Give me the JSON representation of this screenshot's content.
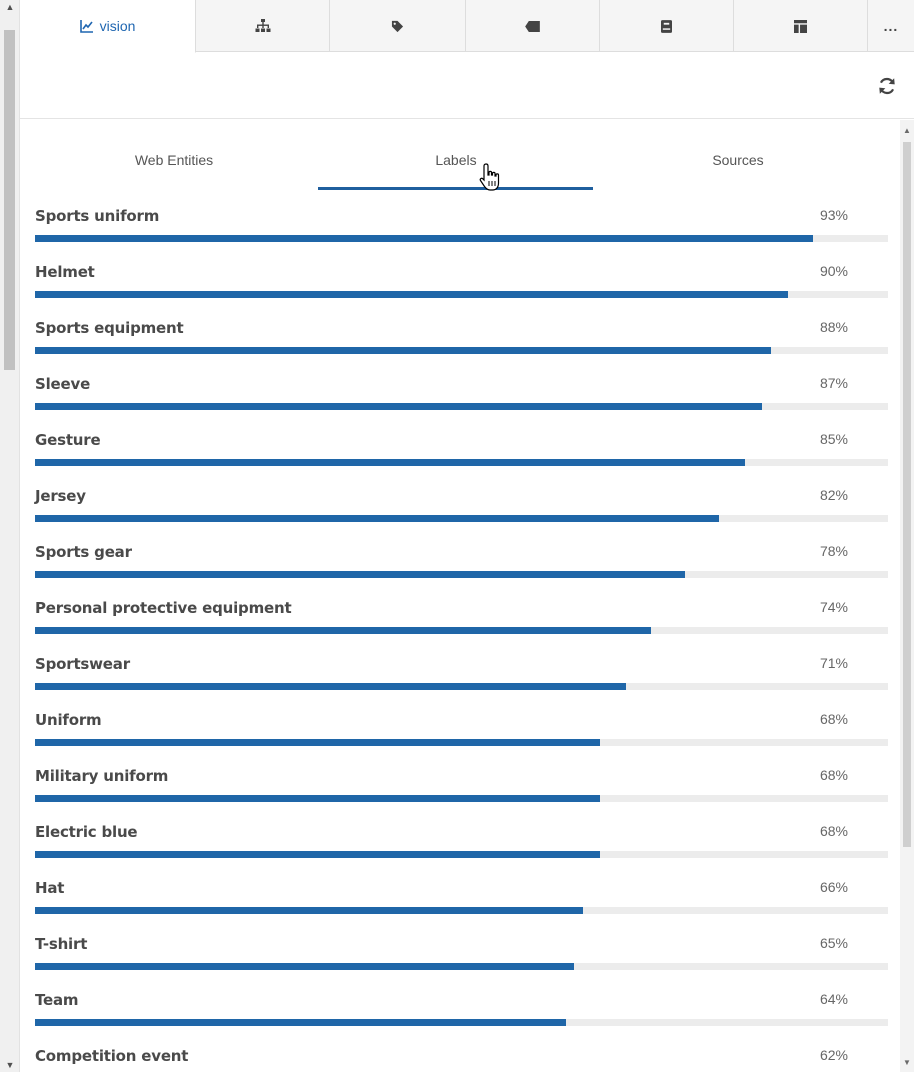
{
  "toolbar": {
    "tabs": [
      {
        "icon": "line-chart-icon",
        "label": "vision",
        "active": true
      },
      {
        "icon": "sitemap-icon",
        "label": ""
      },
      {
        "icon": "tag-icon",
        "label": ""
      },
      {
        "icon": "label-tag-icon",
        "label": ""
      },
      {
        "icon": "book-icon",
        "label": ""
      },
      {
        "icon": "table-layout-icon",
        "label": ""
      },
      {
        "icon": "more-icon",
        "label": "..."
      }
    ],
    "refresh_icon": "refresh-icon"
  },
  "subtabs": {
    "web_entities": "Web Entities",
    "labels": "Labels",
    "sources": "Sources",
    "active": "Labels"
  },
  "labels": [
    {
      "name": "Sports uniform",
      "score": "93%",
      "value": 0.93
    },
    {
      "name": "Helmet",
      "score": "90%",
      "value": 0.9
    },
    {
      "name": "Sports equipment",
      "score": "88%",
      "value": 0.88
    },
    {
      "name": "Sleeve",
      "score": "87%",
      "value": 0.87
    },
    {
      "name": "Gesture",
      "score": "85%",
      "value": 0.85
    },
    {
      "name": "Jersey",
      "score": "82%",
      "value": 0.82
    },
    {
      "name": "Sports gear",
      "score": "78%",
      "value": 0.78
    },
    {
      "name": "Personal protective equipment",
      "score": "74%",
      "value": 0.74
    },
    {
      "name": "Sportswear",
      "score": "71%",
      "value": 0.71
    },
    {
      "name": "Uniform",
      "score": "68%",
      "value": 0.68
    },
    {
      "name": "Military uniform",
      "score": "68%",
      "value": 0.68
    },
    {
      "name": "Electric blue",
      "score": "68%",
      "value": 0.68
    },
    {
      "name": "Hat",
      "score": "66%",
      "value": 0.66
    },
    {
      "name": "T-shirt",
      "score": "65%",
      "value": 0.65
    },
    {
      "name": "Team",
      "score": "64%",
      "value": 0.64
    },
    {
      "name": "Competition event",
      "score": "62%",
      "value": 0.62
    }
  ],
  "colors": {
    "accent": "#1f66a8",
    "underline": "#1f5f9e",
    "track": "#ececec"
  }
}
